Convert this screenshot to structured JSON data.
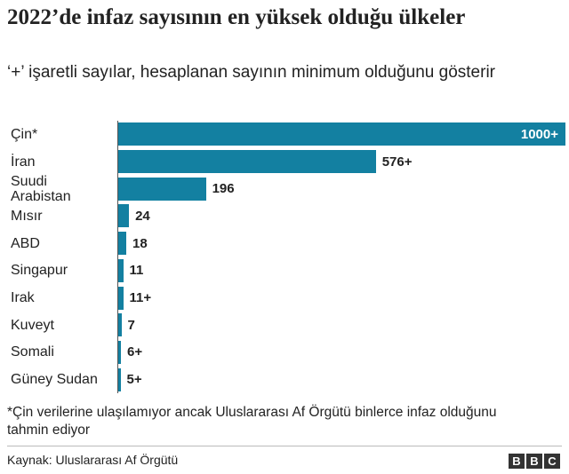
{
  "chart_data": {
    "type": "bar",
    "orientation": "horizontal",
    "title": "2022’de infaz sayısının en yüksek olduğu ülkeler",
    "subtitle": "‘+’ işaretli sayılar, hesaplanan sayının minimum olduğunu gösterir",
    "categories": [
      "Çin*",
      "İran",
      "Suudi Arabistan",
      "Mısır",
      "ABD",
      "Singapur",
      "Irak",
      "Kuveyt",
      "Somali",
      "Güney Sudan"
    ],
    "values": [
      1000,
      576,
      196,
      24,
      18,
      11,
      11,
      7,
      6,
      5
    ],
    "value_labels": [
      "1000+",
      "576+",
      "196",
      "24",
      "18",
      "11",
      "11+",
      "7",
      "6+",
      "5+"
    ],
    "color": "#1380a1",
    "footnote": "*Çin verilerine ulaşılamıyor ancak Uluslararası Af Örgütü binlerce infaz olduğunu tahmin ediyor",
    "source": "Kaynak: Uluslararası Af Örgütü",
    "logo": [
      "B",
      "B",
      "C"
    ]
  }
}
